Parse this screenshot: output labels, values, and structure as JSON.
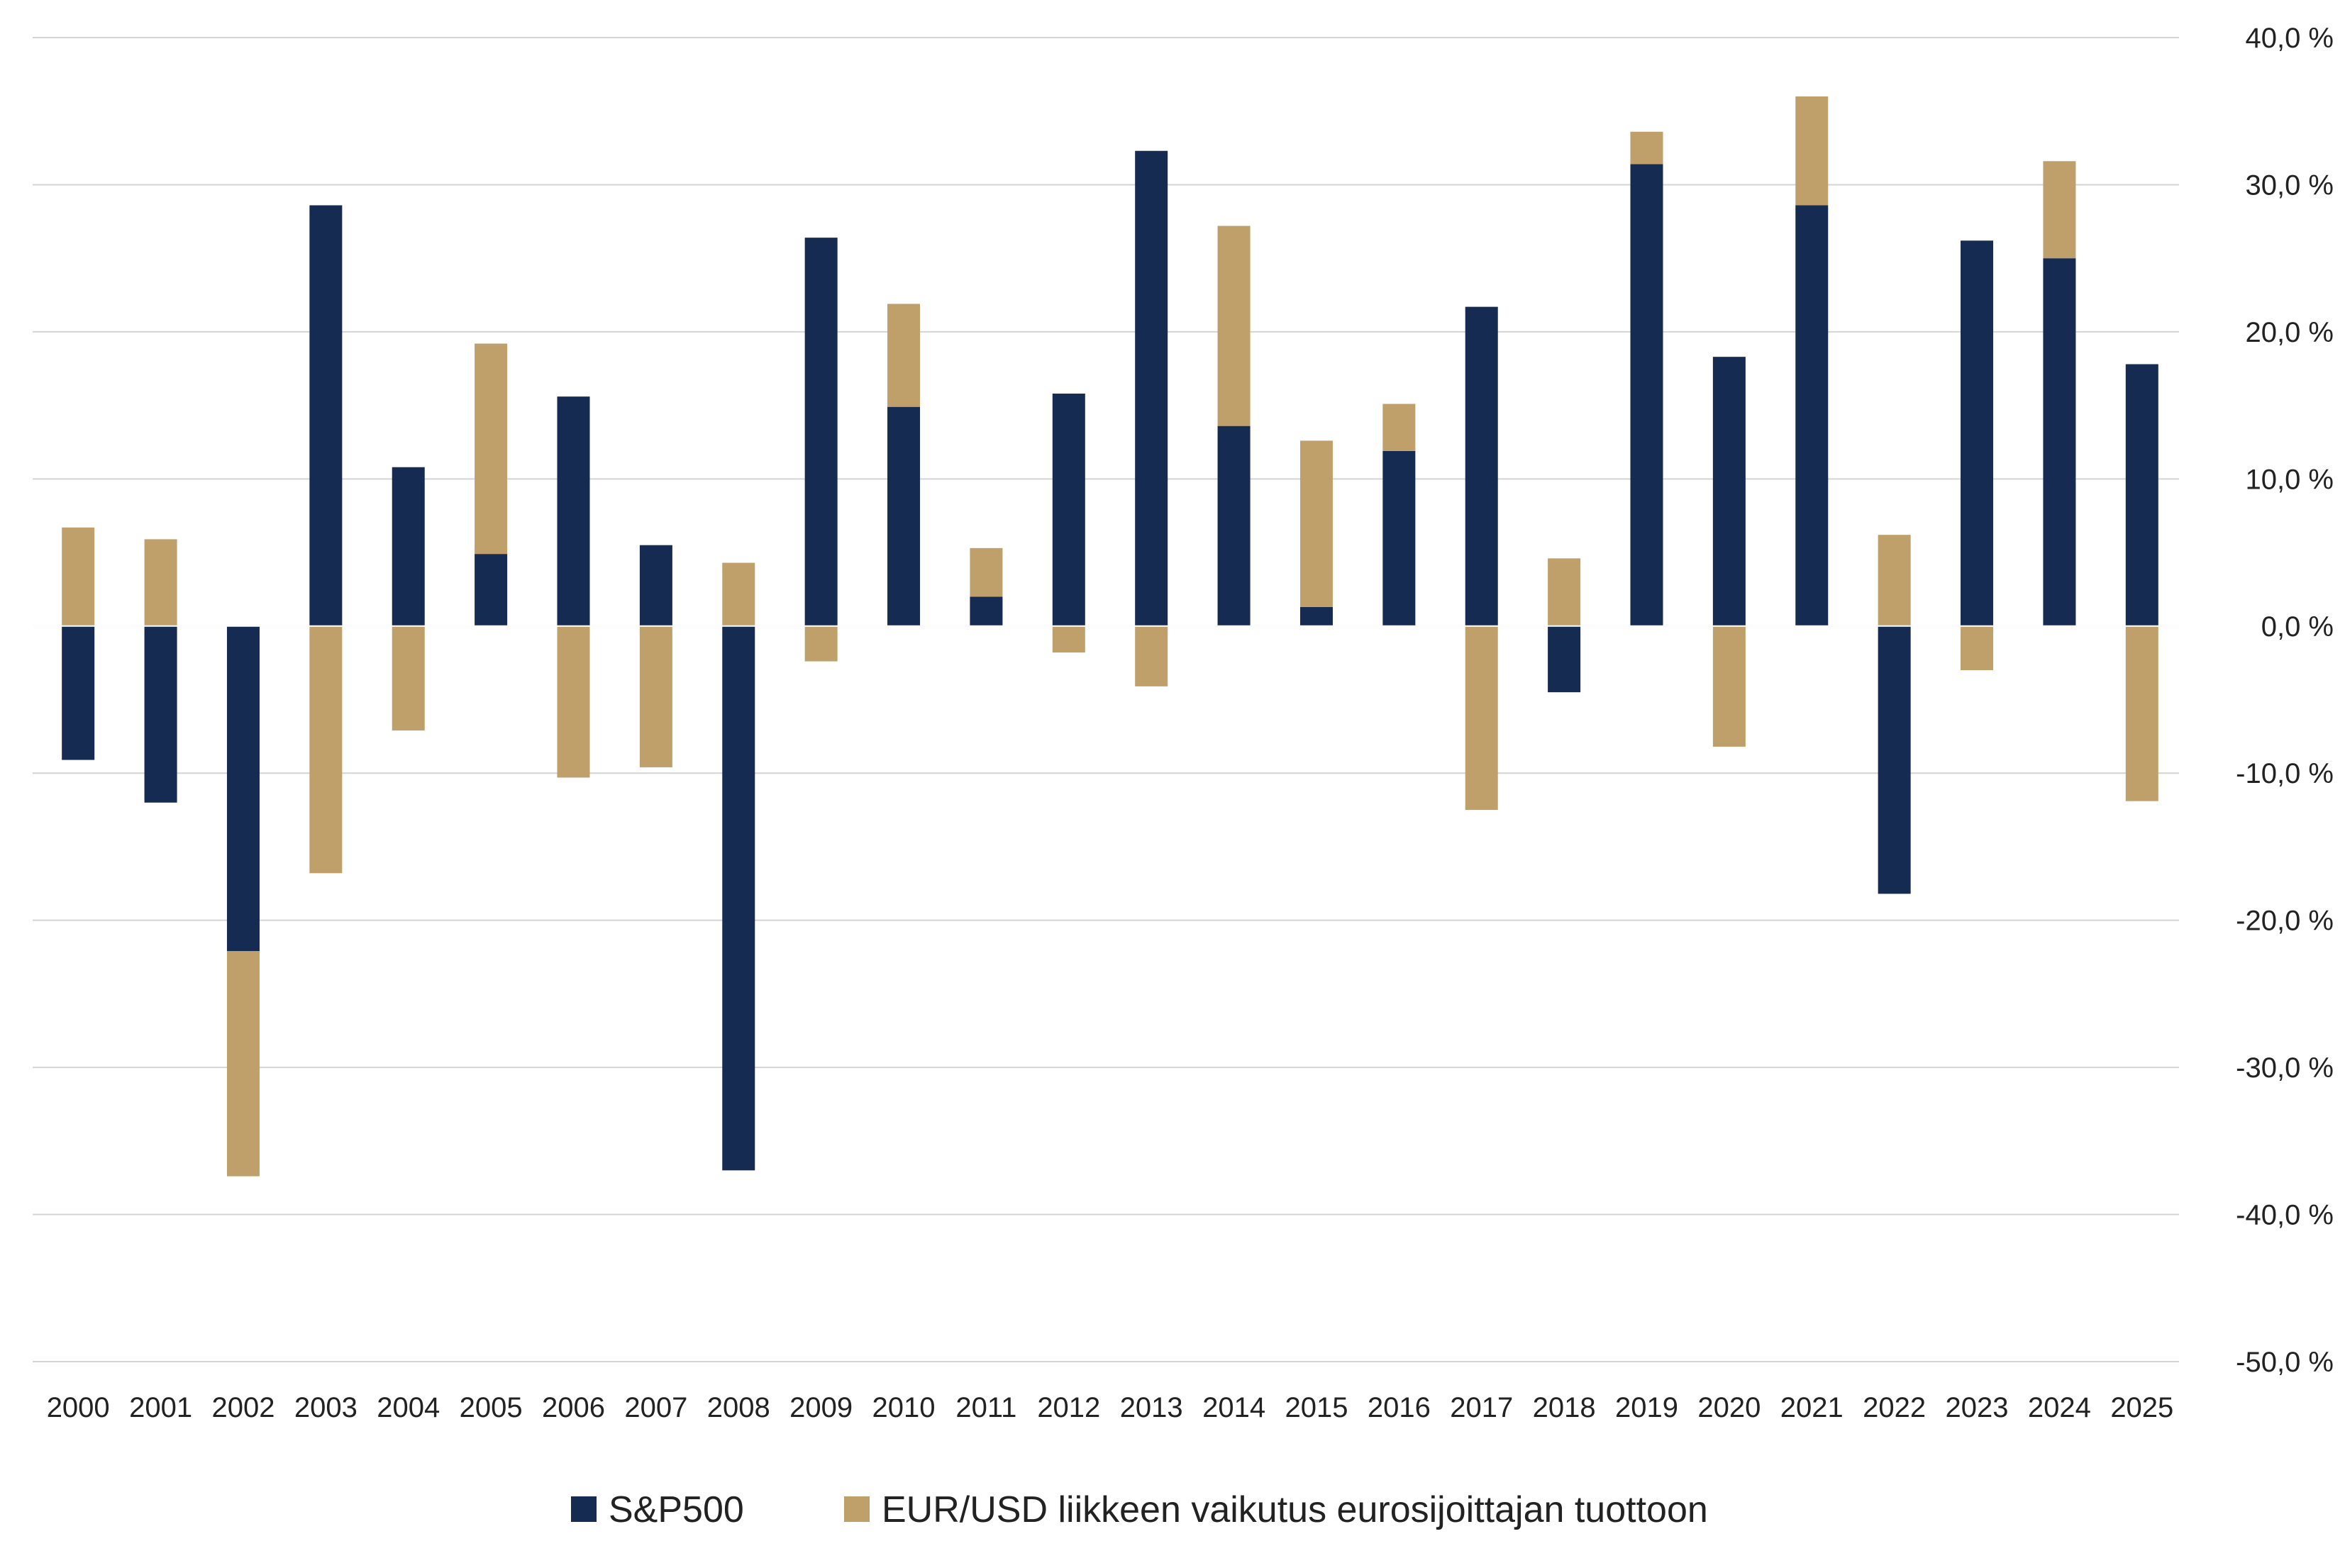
{
  "chart_data": {
    "type": "bar",
    "stacked": true,
    "categories": [
      "2000",
      "2001",
      "2002",
      "2003",
      "2004",
      "2005",
      "2006",
      "2007",
      "2008",
      "2009",
      "2010",
      "2011",
      "2012",
      "2013",
      "2014",
      "2015",
      "2016",
      "2017",
      "2018",
      "2019",
      "2020",
      "2021",
      "2022",
      "2023",
      "2024",
      "2025"
    ],
    "series": [
      {
        "name": "S&P500",
        "color": "#152b52",
        "values": [
          -9.1,
          -12.0,
          -22.1,
          28.6,
          10.8,
          4.9,
          15.6,
          5.5,
          -37.0,
          26.4,
          14.9,
          2.0,
          15.8,
          32.3,
          13.6,
          1.3,
          11.9,
          21.7,
          -4.5,
          31.4,
          18.3,
          28.6,
          -18.2,
          26.2,
          25.0,
          17.8
        ]
      },
      {
        "name": "EUR/USD liikkeen vaikutus eurosijoittajan tuottoon",
        "color": "#bfa06b",
        "values": [
          6.7,
          5.9,
          -15.3,
          -16.8,
          -7.1,
          14.3,
          -10.3,
          -9.6,
          4.3,
          -2.4,
          7.0,
          3.3,
          -1.8,
          -4.1,
          13.6,
          11.3,
          3.2,
          -12.5,
          4.6,
          2.2,
          -8.2,
          7.4,
          6.2,
          -3.0,
          6.6,
          -11.9
        ]
      }
    ],
    "ylim": [
      -50,
      40
    ],
    "yticks": [
      40,
      30,
      20,
      10,
      0,
      -10,
      -20,
      -30,
      -40,
      -50
    ],
    "ytick_labels": [
      "40,0 %",
      "30,0 %",
      "20,0 %",
      "10,0 %",
      "0,0 %",
      "-10,0 %",
      "-20,0 %",
      "-30,0 %",
      "-40,0 %",
      "-50,0 %"
    ],
    "y_axis_side": "right",
    "grid": true,
    "legend_position": "bottom",
    "title": "",
    "xlabel": "",
    "ylabel": ""
  }
}
